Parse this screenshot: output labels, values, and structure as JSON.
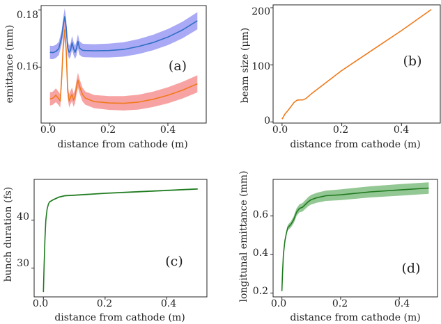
{
  "colors": {
    "blue": "#2f6fc4",
    "blue_band": "#a9a9f5",
    "orange": "#ef7a1a",
    "orange_band": "#f8a3a3",
    "green": "#1f7a1f",
    "green_band": "#93c793",
    "axis": "#222222"
  },
  "chart_data": [
    {
      "type": "line",
      "panel_label": "(a)",
      "xlabel": "distance from cathode (m)",
      "ylabel": "emittance (mm)",
      "xlim": [
        -0.03,
        0.53
      ],
      "ylim": [
        0.1405,
        0.1815
      ],
      "xticks": [
        0.0,
        0.2,
        0.4
      ],
      "xtick_labels": [
        "0.0",
        "0.2",
        "0.4"
      ],
      "yticks": [
        0.16,
        0.18
      ],
      "ytick_labels": [
        "0.16",
        "0.18"
      ],
      "series": [
        {
          "color": "blue",
          "band_color": "blue_band",
          "x": [
            0.0,
            0.01,
            0.02,
            0.03,
            0.04,
            0.045,
            0.05,
            0.055,
            0.06,
            0.065,
            0.07,
            0.075,
            0.08,
            0.085,
            0.09,
            0.095,
            0.1,
            0.11,
            0.12,
            0.15,
            0.2,
            0.25,
            0.3,
            0.35,
            0.4,
            0.45,
            0.5
          ],
          "y": [
            0.1652,
            0.1651,
            0.1655,
            0.1665,
            0.1705,
            0.1745,
            0.1776,
            0.174,
            0.1668,
            0.1652,
            0.166,
            0.1685,
            0.1665,
            0.1652,
            0.1665,
            0.169,
            0.1667,
            0.1659,
            0.1658,
            0.1657,
            0.1658,
            0.1662,
            0.1672,
            0.1686,
            0.1705,
            0.173,
            0.1762
          ],
          "band": [
            0.0023,
            0.0023,
            0.0023,
            0.0023,
            0.0025,
            0.0027,
            0.003,
            0.0027,
            0.0024,
            0.0023,
            0.0023,
            0.0024,
            0.0023,
            0.0023,
            0.0024,
            0.0025,
            0.0024,
            0.0023,
            0.0023,
            0.0023,
            0.0024,
            0.0025,
            0.0026,
            0.0027,
            0.0028,
            0.0029,
            0.003
          ]
        },
        {
          "color": "orange",
          "band_color": "orange_band",
          "x": [
            0.0,
            0.01,
            0.02,
            0.03,
            0.035,
            0.04,
            0.045,
            0.05,
            0.055,
            0.06,
            0.065,
            0.07,
            0.075,
            0.08,
            0.085,
            0.09,
            0.095,
            0.1,
            0.11,
            0.12,
            0.15,
            0.2,
            0.25,
            0.3,
            0.35,
            0.4,
            0.45,
            0.5
          ],
          "y": [
            0.1489,
            0.1492,
            0.1502,
            0.149,
            0.1482,
            0.1565,
            0.1675,
            0.173,
            0.166,
            0.152,
            0.1482,
            0.1495,
            0.1505,
            0.1485,
            0.1498,
            0.153,
            0.1555,
            0.1535,
            0.1505,
            0.1492,
            0.148,
            0.1475,
            0.1474,
            0.1478,
            0.1488,
            0.1502,
            0.152,
            0.1542
          ],
          "band": [
            0.0023,
            0.0023,
            0.0024,
            0.0023,
            0.0023,
            0.0025,
            0.0028,
            0.003,
            0.0028,
            0.0024,
            0.0023,
            0.0023,
            0.0024,
            0.0023,
            0.0024,
            0.0025,
            0.0026,
            0.0025,
            0.0024,
            0.0023,
            0.0023,
            0.0024,
            0.0025,
            0.0026,
            0.0027,
            0.0028,
            0.0029,
            0.003
          ]
        }
      ]
    },
    {
      "type": "line",
      "panel_label": "(b)",
      "xlabel": "distance from cathode (m)",
      "ylabel": "beam size (μm)",
      "xlim": [
        -0.03,
        0.53
      ],
      "ylim": [
        -2,
        205
      ],
      "xticks": [
        0.0,
        0.2,
        0.4
      ],
      "xtick_labels": [
        "0.0",
        "0.2",
        "0.4"
      ],
      "yticks": [
        0,
        100,
        200
      ],
      "ytick_labels": [
        "0",
        "100",
        "200"
      ],
      "series": [
        {
          "color": "orange",
          "band_color": null,
          "x": [
            0.0,
            0.01,
            0.02,
            0.03,
            0.04,
            0.05,
            0.06,
            0.07,
            0.08,
            0.1,
            0.15,
            0.2,
            0.3,
            0.4,
            0.5
          ],
          "y": [
            5,
            14,
            20,
            27,
            34,
            38,
            38.5,
            38.5,
            41,
            50,
            70,
            90,
            125,
            160,
            197
          ],
          "band": null
        }
      ]
    },
    {
      "type": "line",
      "panel_label": "(c)",
      "xlabel": "distance from cathode (m)",
      "ylabel": "bunch duration (fs)",
      "xlim": [
        -0.03,
        0.53
      ],
      "ylim": [
        24,
        48.5
      ],
      "xticks": [
        0.0,
        0.2,
        0.4
      ],
      "xtick_labels": [
        "0.0",
        "0.2",
        "0.4"
      ],
      "yticks": [
        30,
        40
      ],
      "ytick_labels": [
        "30",
        "40"
      ],
      "series": [
        {
          "color": "green",
          "band_color": "green_band",
          "x": [
            0.0,
            0.002,
            0.005,
            0.008,
            0.012,
            0.016,
            0.02,
            0.03,
            0.04,
            0.05,
            0.07,
            0.1,
            0.2,
            0.3,
            0.4,
            0.5
          ],
          "y": [
            25,
            30,
            36,
            40,
            42.3,
            43.3,
            43.8,
            44.2,
            44.5,
            44.8,
            45.1,
            45.2,
            45.6,
            45.9,
            46.2,
            46.5
          ],
          "band": [
            0.1,
            0.1,
            0.15,
            0.15,
            0.15,
            0.15,
            0.15,
            0.15,
            0.15,
            0.15,
            0.15,
            0.15,
            0.15,
            0.15,
            0.15,
            0.15
          ]
        }
      ]
    },
    {
      "type": "line",
      "panel_label": "(d)",
      "xlabel": "distance from cathode (m)",
      "ylabel": "longitunal emittance (mm)",
      "xlim": [
        -0.03,
        0.53
      ],
      "ylim": [
        0.18,
        0.79
      ],
      "xticks": [
        0.0,
        0.2,
        0.4
      ],
      "xtick_labels": [
        "0.0",
        "0.2",
        "0.4"
      ],
      "yticks": [
        0.2,
        0.4,
        0.6
      ],
      "ytick_labels": [
        "0.2",
        "0.4",
        "0.6"
      ],
      "series": [
        {
          "color": "green",
          "band_color": "green_band",
          "x": [
            0.0,
            0.002,
            0.005,
            0.01,
            0.015,
            0.02,
            0.03,
            0.04,
            0.05,
            0.06,
            0.07,
            0.08,
            0.09,
            0.1,
            0.12,
            0.15,
            0.2,
            0.3,
            0.4,
            0.5
          ],
          "y": [
            0.21,
            0.3,
            0.4,
            0.47,
            0.51,
            0.54,
            0.555,
            0.58,
            0.62,
            0.64,
            0.645,
            0.66,
            0.675,
            0.685,
            0.695,
            0.705,
            0.71,
            0.725,
            0.735,
            0.745
          ],
          "band": [
            0.004,
            0.006,
            0.008,
            0.01,
            0.012,
            0.014,
            0.016,
            0.018,
            0.02,
            0.021,
            0.022,
            0.023,
            0.024,
            0.025,
            0.026,
            0.027,
            0.028,
            0.029,
            0.03,
            0.03
          ]
        }
      ]
    }
  ]
}
